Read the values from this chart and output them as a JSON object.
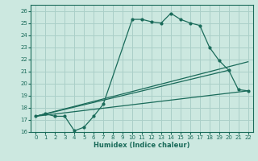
{
  "xlabel": "Humidex (Indice chaleur)",
  "bg_color": "#cce8e0",
  "grid_color": "#aacfc8",
  "line_color": "#1a6b5a",
  "xlim": [
    -0.5,
    22.5
  ],
  "ylim": [
    16,
    26.5
  ],
  "yticks": [
    16,
    17,
    18,
    19,
    20,
    21,
    22,
    23,
    24,
    25,
    26
  ],
  "xticks": [
    0,
    1,
    2,
    3,
    4,
    5,
    6,
    7,
    8,
    9,
    10,
    11,
    12,
    13,
    14,
    15,
    16,
    17,
    18,
    19,
    20,
    21,
    22
  ],
  "seg1_x": [
    0,
    1,
    2,
    3,
    4,
    5,
    6,
    7
  ],
  "seg1_y": [
    17.3,
    17.5,
    17.3,
    17.3,
    16.1,
    16.4,
    17.3,
    18.3
  ],
  "seg2_x": [
    10,
    11,
    12,
    13,
    14,
    15,
    16,
    17,
    18,
    19,
    20,
    21,
    22
  ],
  "seg2_y": [
    25.3,
    25.3,
    25.1,
    25.0,
    25.8,
    25.3,
    25.0,
    24.8,
    23.0,
    21.9,
    21.1,
    19.5,
    19.4
  ],
  "upper_line": [
    [
      0,
      22
    ],
    [
      17.3,
      21.8
    ]
  ],
  "lower_line": [
    [
      0,
      22
    ],
    [
      17.3,
      19.4
    ]
  ],
  "mid_line": [
    [
      0,
      20
    ],
    [
      17.3,
      21.1
    ]
  ]
}
